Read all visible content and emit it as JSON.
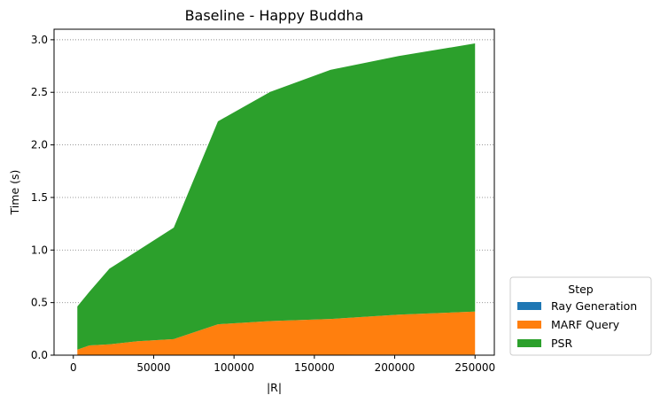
{
  "chart_data": {
    "type": "area",
    "stacked": true,
    "title": "Baseline - Happy Buddha",
    "xlabel": "|R|",
    "ylabel": "Time (s)",
    "xlim": [
      -12000,
      262000
    ],
    "ylim": [
      0,
      3.1
    ],
    "x_ticks": [
      0,
      50000,
      100000,
      150000,
      200000,
      250000
    ],
    "y_ticks": [
      0.0,
      0.5,
      1.0,
      1.5,
      2.0,
      2.5,
      3.0
    ],
    "grid": "horizontal-dotted",
    "legend_title": "Step",
    "legend_position": "right-bottom-outside",
    "x": [
      2500,
      10000,
      22500,
      40000,
      62500,
      90000,
      122500,
      160000,
      202500,
      250000
    ],
    "series": [
      {
        "name": "Ray Generation",
        "color": "#1f77b4",
        "values": [
          0.003,
          0.003,
          0.003,
          0.003,
          0.003,
          0.004,
          0.004,
          0.004,
          0.005,
          0.005
        ]
      },
      {
        "name": "MARF Query",
        "color": "#ff7f0e",
        "values": [
          0.05,
          0.09,
          0.1,
          0.13,
          0.15,
          0.29,
          0.32,
          0.34,
          0.38,
          0.41
        ]
      },
      {
        "name": "PSR",
        "color": "#2ca02c",
        "values": [
          0.41,
          0.51,
          0.72,
          0.86,
          1.06,
          1.93,
          2.18,
          2.37,
          2.46,
          2.55
        ]
      }
    ]
  }
}
